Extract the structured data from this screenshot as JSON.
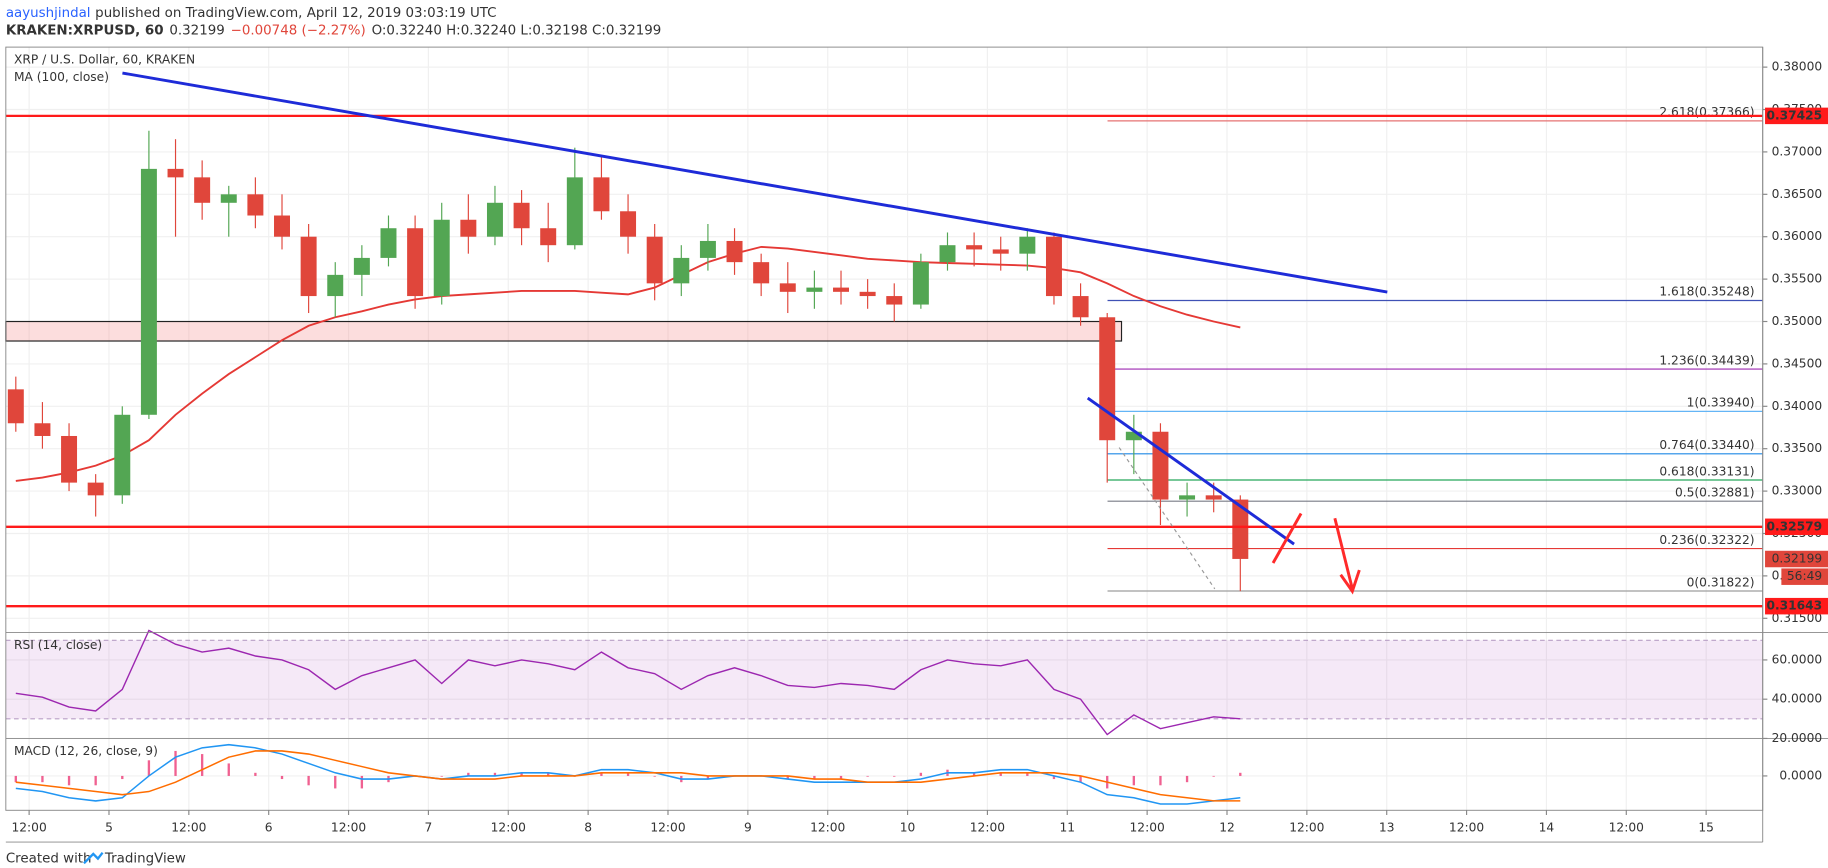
{
  "header": {
    "author": "aayushjindal",
    "published": "published on TradingView.com, April 12, 2019 03:03:19 UTC",
    "symbol": "KRAKEN:XRPUSD, 60",
    "last": "0.32199",
    "change": "−0.00748 (−2.27%)",
    "ohlc": "O:0.32240 H:0.32240 L:0.32198 C:0.32199"
  },
  "footer": {
    "created": "Created with",
    "brand": "TradingView"
  },
  "chart_data": [
    {
      "type": "candlestick",
      "title": "XRP / U.S. Dollar, 60, KRAKEN",
      "xlim": [
        8.5,
        272.5
      ],
      "xticks": [
        {
          "value": 12,
          "label": "12:00"
        },
        {
          "value": 24,
          "label": "5"
        },
        {
          "value": 36,
          "label": "12:00"
        },
        {
          "value": 48,
          "label": "6"
        },
        {
          "value": 60,
          "label": "12:00"
        },
        {
          "value": 72,
          "label": "7"
        },
        {
          "value": 84,
          "label": "12:00"
        },
        {
          "value": 96,
          "label": "8"
        },
        {
          "value": 108,
          "label": "12:00"
        },
        {
          "value": 120,
          "label": "9"
        },
        {
          "value": 132,
          "label": "12:00"
        },
        {
          "value": 144,
          "label": "10"
        },
        {
          "value": 156,
          "label": "12:00"
        },
        {
          "value": 168,
          "label": "11"
        },
        {
          "value": 180,
          "label": "12:00"
        },
        {
          "value": 192,
          "label": "12"
        },
        {
          "value": 204,
          "label": "12:00"
        },
        {
          "value": 216,
          "label": "13"
        },
        {
          "value": 228,
          "label": "12:00"
        },
        {
          "value": 240,
          "label": "14"
        },
        {
          "value": 252,
          "label": "12:00"
        },
        {
          "value": 264,
          "label": "15"
        }
      ],
      "ylim": [
        0.31333,
        0.38236
      ],
      "yticks": [
        {
          "value": 0.315,
          "label": "0.31500"
        },
        {
          "value": 0.32,
          "label": "0.32000"
        },
        {
          "value": 0.325,
          "label": "0.32500"
        },
        {
          "value": 0.33,
          "label": "0.33000"
        },
        {
          "value": 0.335,
          "label": "0.33500"
        },
        {
          "value": 0.34,
          "label": "0.34000"
        },
        {
          "value": 0.345,
          "label": "0.34500"
        },
        {
          "value": 0.35,
          "label": "0.35000"
        },
        {
          "value": 0.355,
          "label": "0.35500"
        },
        {
          "value": 0.36,
          "label": "0.36000"
        },
        {
          "value": 0.365,
          "label": "0.36500"
        },
        {
          "value": 0.37,
          "label": "0.37000"
        },
        {
          "value": 0.375,
          "label": "0.37500"
        },
        {
          "value": 0.38,
          "label": "0.38000"
        }
      ],
      "x": [
        10,
        14,
        18,
        22,
        26,
        30,
        34,
        38,
        42,
        46,
        50,
        54,
        58,
        62,
        66,
        70,
        74,
        78,
        82,
        86,
        90,
        94,
        98,
        102,
        106,
        110,
        114,
        118,
        122,
        126,
        130,
        134,
        138,
        142,
        146,
        150,
        154,
        158,
        162,
        166,
        170,
        174,
        178,
        182,
        186,
        190,
        194
      ],
      "open": [
        0.342,
        0.338,
        0.3365,
        0.331,
        0.3295,
        0.339,
        0.368,
        0.367,
        0.364,
        0.365,
        0.3625,
        0.36,
        0.353,
        0.3555,
        0.3575,
        0.361,
        0.353,
        0.362,
        0.36,
        0.364,
        0.361,
        0.359,
        0.367,
        0.363,
        0.36,
        0.3545,
        0.3575,
        0.3595,
        0.357,
        0.3545,
        0.3535,
        0.354,
        0.3535,
        0.353,
        0.352,
        0.357,
        0.359,
        0.3585,
        0.358,
        0.36,
        0.353,
        0.3505,
        0.336,
        0.337,
        0.329,
        0.3295,
        0.329
      ],
      "high": [
        0.3435,
        0.3405,
        0.338,
        0.332,
        0.34,
        0.3725,
        0.3715,
        0.369,
        0.366,
        0.367,
        0.365,
        0.3615,
        0.357,
        0.359,
        0.3625,
        0.3625,
        0.364,
        0.365,
        0.366,
        0.3655,
        0.364,
        0.3705,
        0.3695,
        0.365,
        0.3615,
        0.359,
        0.3615,
        0.361,
        0.358,
        0.357,
        0.356,
        0.356,
        0.355,
        0.3545,
        0.358,
        0.3605,
        0.3605,
        0.36,
        0.361,
        0.3605,
        0.3545,
        0.351,
        0.339,
        0.338,
        0.331,
        0.331,
        0.3295
      ],
      "low": [
        0.337,
        0.335,
        0.33,
        0.327,
        0.3285,
        0.3385,
        0.36,
        0.362,
        0.36,
        0.361,
        0.3585,
        0.351,
        0.3505,
        0.353,
        0.3565,
        0.3515,
        0.352,
        0.358,
        0.359,
        0.359,
        0.357,
        0.3585,
        0.362,
        0.358,
        0.3525,
        0.353,
        0.356,
        0.3555,
        0.353,
        0.351,
        0.3515,
        0.352,
        0.3515,
        0.35,
        0.3515,
        0.356,
        0.3565,
        0.356,
        0.356,
        0.352,
        0.3495,
        0.331,
        0.332,
        0.326,
        0.327,
        0.3275,
        0.3182
      ],
      "close": [
        0.338,
        0.3365,
        0.331,
        0.3295,
        0.339,
        0.368,
        0.367,
        0.364,
        0.365,
        0.3625,
        0.36,
        0.353,
        0.3555,
        0.3575,
        0.361,
        0.353,
        0.362,
        0.36,
        0.364,
        0.361,
        0.359,
        0.367,
        0.363,
        0.36,
        0.3545,
        0.3575,
        0.3595,
        0.357,
        0.3545,
        0.3535,
        0.354,
        0.3535,
        0.353,
        0.352,
        0.357,
        0.359,
        0.3585,
        0.358,
        0.36,
        0.353,
        0.3505,
        0.336,
        0.337,
        0.329,
        0.3295,
        0.329,
        0.322
      ],
      "up_color": "#53a653",
      "down_color": "#e0463b",
      "ma": {
        "label": "MA (100, close)",
        "color": "#e53935",
        "values": [
          0.3312,
          0.3316,
          0.3322,
          0.333,
          0.3342,
          0.336,
          0.339,
          0.3415,
          0.3438,
          0.3458,
          0.3478,
          0.3495,
          0.3505,
          0.3512,
          0.352,
          0.3526,
          0.353,
          0.3532,
          0.3534,
          0.3536,
          0.3536,
          0.3536,
          0.3534,
          0.3532,
          0.354,
          0.3555,
          0.357,
          0.358,
          0.3588,
          0.3586,
          0.3582,
          0.3578,
          0.3574,
          0.3572,
          0.357,
          0.3569,
          0.3568,
          0.3567,
          0.3566,
          0.3563,
          0.3558,
          0.3545,
          0.353,
          0.3518,
          0.3508,
          0.35,
          0.3493
        ]
      },
      "zone": [
        0.3477,
        0.35
      ],
      "hlines": [
        0.37425,
        0.32579,
        0.31643
      ],
      "hline_color": "#ff1a1a",
      "last_price": 0.32199,
      "countdown": "56:49",
      "fib_levels": [
        {
          "label": "2.618(0.37366)",
          "value": 0.37366,
          "color": "#e57373"
        },
        {
          "label": "1.618(0.35248)",
          "value": 0.35248,
          "color": "#3f51b5"
        },
        {
          "label": "1.236(0.34439)",
          "value": 0.34439,
          "color": "#9c27b0"
        },
        {
          "label": "1(0.33940)",
          "value": 0.3394,
          "color": "#64b5f6"
        },
        {
          "label": "0.764(0.33440)",
          "value": 0.3344,
          "color": "#1e88e5"
        },
        {
          "label": "0.618(0.33131)",
          "value": 0.33131,
          "color": "#26a65b"
        },
        {
          "label": "0.5(0.32881)",
          "value": 0.32881,
          "color": "#787b86"
        },
        {
          "label": "0.236(0.32322)",
          "value": 0.32322,
          "color": "#e53935"
        },
        {
          "label": "0(0.31822)",
          "value": 0.31822,
          "color": "#9e9e9e"
        }
      ]
    },
    {
      "type": "line",
      "title": "RSI (14, close)",
      "ylim": [
        20,
        74
      ],
      "yticks": [
        {
          "value": 60,
          "label": "60.0000"
        },
        {
          "value": 40,
          "label": "40.0000"
        },
        {
          "value": 20,
          "label": "20.0000"
        }
      ],
      "band": [
        30,
        70
      ],
      "series": [
        {
          "color": "#9c27b0",
          "values": [
            43,
            41,
            36,
            34,
            45,
            75,
            68,
            64,
            66,
            62,
            60,
            55,
            45,
            52,
            56,
            60,
            48,
            60,
            57,
            60,
            58,
            55,
            64,
            56,
            53,
            45,
            52,
            56,
            52,
            47,
            46,
            48,
            47,
            45,
            55,
            60,
            58,
            57,
            60,
            45,
            40,
            22,
            32,
            25,
            28,
            31,
            30
          ]
        }
      ]
    },
    {
      "type": "macd",
      "title": "MACD (12, 26, close, 9)",
      "ylim": [
        -0.011,
        0.012
      ],
      "yticks": [
        {
          "value": 0,
          "label": "0.0000"
        }
      ],
      "series": [
        {
          "color": "#2196f3",
          "values": [
            -0.004,
            -0.005,
            -0.007,
            -0.008,
            -0.007,
            0,
            0.006,
            0.009,
            0.01,
            0.009,
            0.007,
            0.004,
            0.001,
            -0.001,
            -0.001,
            0,
            -0.001,
            0,
            0,
            0.001,
            0.001,
            0,
            0.002,
            0.002,
            0.001,
            -0.001,
            -0.001,
            0,
            0,
            -0.001,
            -0.002,
            -0.002,
            -0.002,
            -0.002,
            -0.001,
            0.001,
            0.001,
            0.002,
            0.002,
            0,
            -0.002,
            -0.006,
            -0.007,
            -0.009,
            -0.009,
            -0.008,
            -0.007
          ]
        },
        {
          "color": "#ff6d00",
          "values": [
            -0.002,
            -0.003,
            -0.004,
            -0.005,
            -0.006,
            -0.005,
            -0.002,
            0.002,
            0.006,
            0.008,
            0.008,
            0.007,
            0.005,
            0.003,
            0.001,
            0,
            -0.001,
            -0.001,
            -0.001,
            0,
            0,
            0,
            0.001,
            0.001,
            0.001,
            0.001,
            0,
            0,
            0,
            0,
            -0.001,
            -0.001,
            -0.002,
            -0.002,
            -0.002,
            -0.001,
            0,
            0.001,
            0.001,
            0.001,
            0,
            -0.002,
            -0.004,
            -0.006,
            -0.007,
            -0.008,
            -0.008
          ]
        }
      ],
      "histogram": {
        "color": "#e91e63",
        "values": [
          -0.002,
          -0.002,
          -0.003,
          -0.003,
          -0.001,
          0.005,
          0.008,
          0.007,
          0.004,
          0.001,
          -0.001,
          -0.003,
          -0.004,
          -0.004,
          -0.002,
          0,
          0,
          0.001,
          0.001,
          0.001,
          0.001,
          0,
          0.001,
          0.001,
          0,
          -0.002,
          -0.001,
          0,
          0,
          -0.001,
          -0.001,
          -0.001,
          0,
          0,
          0.001,
          0.002,
          0.001,
          0.001,
          0.001,
          -0.001,
          -0.002,
          -0.004,
          -0.003,
          -0.003,
          -0.002,
          0,
          0.001
        ]
      }
    }
  ]
}
